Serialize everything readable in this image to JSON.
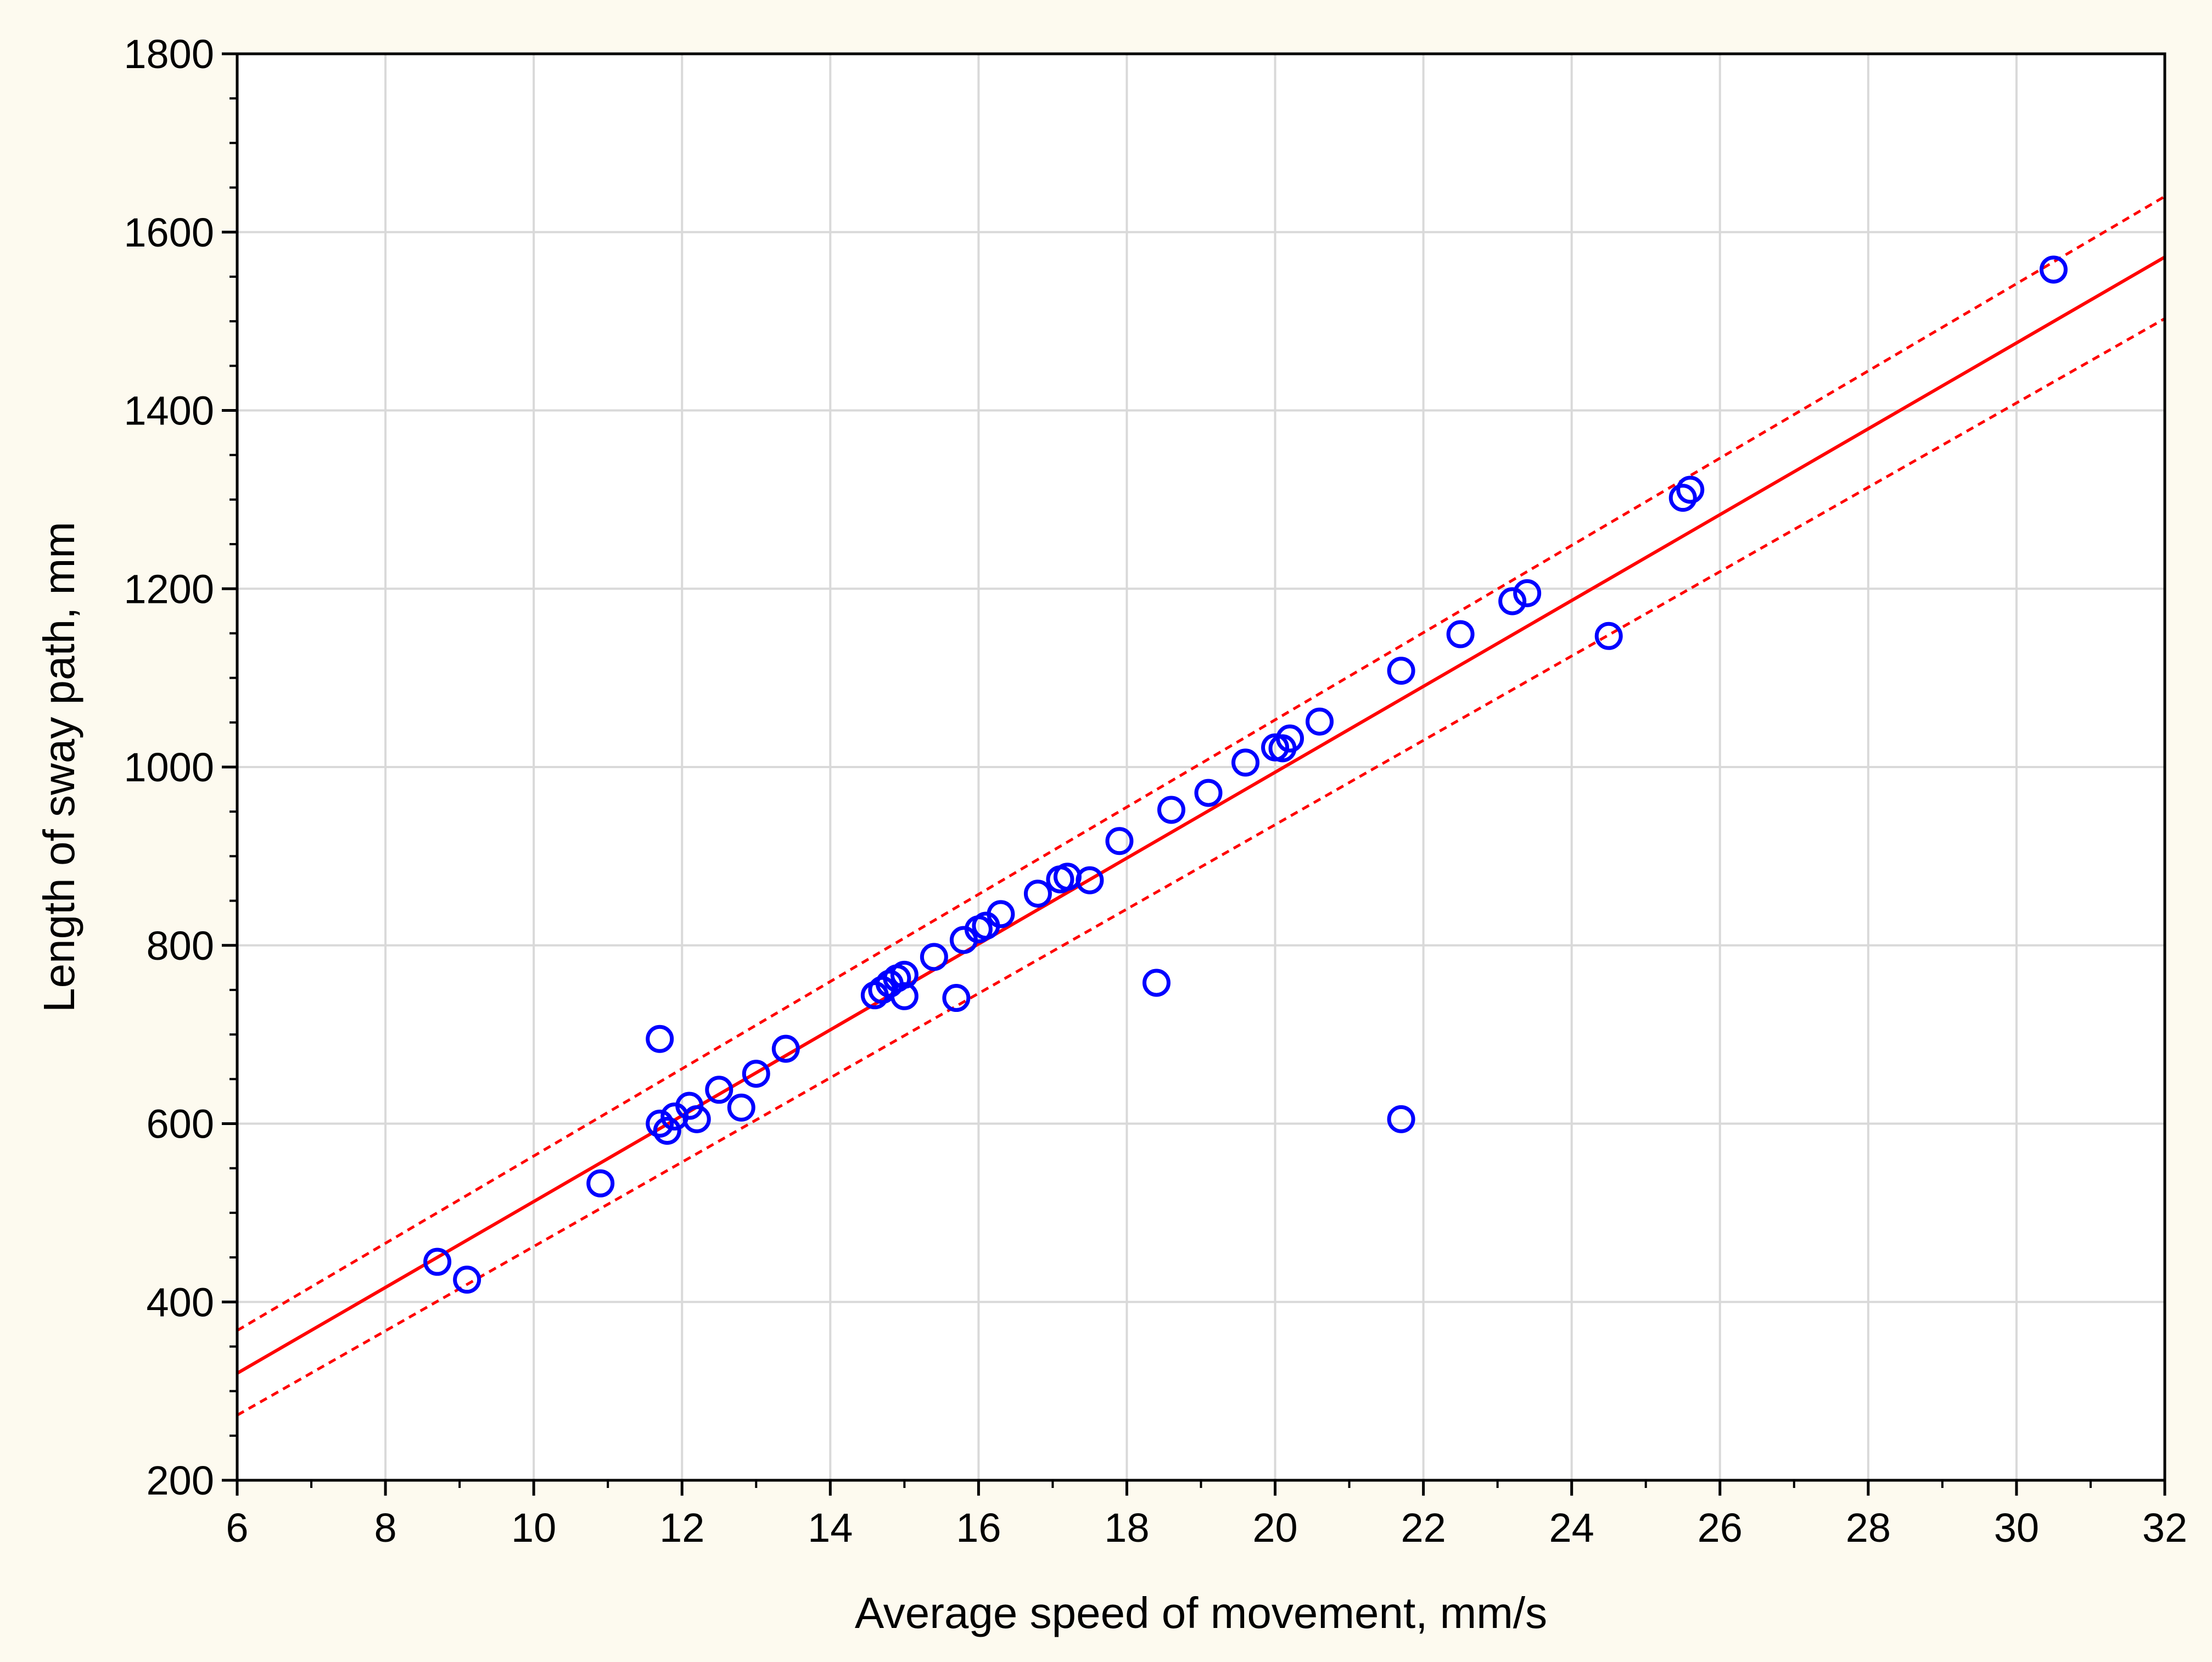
{
  "chart_data": {
    "type": "scatter",
    "title": "",
    "xlabel": "Average speed of movement, mm/s",
    "ylabel": "Length of sway path, mm",
    "xlim": [
      6,
      32
    ],
    "ylim": [
      200,
      1800
    ],
    "xticks": [
      6,
      8,
      10,
      12,
      14,
      16,
      18,
      20,
      22,
      24,
      26,
      28,
      30,
      32
    ],
    "yticks": [
      200,
      400,
      600,
      800,
      1000,
      1200,
      1400,
      1600,
      1800
    ],
    "grid": true,
    "legend": "none",
    "colors": {
      "background": "#fdfaef",
      "plot_background": "#ffffff",
      "grid": "#d9d9d9",
      "points": "#0000ff",
      "fit": "#ff0000",
      "axis": "#000000"
    },
    "points": [
      {
        "x": 8.7,
        "y": 445
      },
      {
        "x": 9.1,
        "y": 425
      },
      {
        "x": 10.9,
        "y": 533
      },
      {
        "x": 11.7,
        "y": 695
      },
      {
        "x": 11.7,
        "y": 600
      },
      {
        "x": 11.8,
        "y": 592
      },
      {
        "x": 11.9,
        "y": 608
      },
      {
        "x": 12.1,
        "y": 620
      },
      {
        "x": 12.2,
        "y": 605
      },
      {
        "x": 12.5,
        "y": 638
      },
      {
        "x": 12.8,
        "y": 618
      },
      {
        "x": 13.0,
        "y": 656
      },
      {
        "x": 13.4,
        "y": 684
      },
      {
        "x": 14.6,
        "y": 744
      },
      {
        "x": 14.7,
        "y": 750
      },
      {
        "x": 14.8,
        "y": 757
      },
      {
        "x": 14.9,
        "y": 763
      },
      {
        "x": 15.0,
        "y": 743
      },
      {
        "x": 15.0,
        "y": 767
      },
      {
        "x": 15.4,
        "y": 787
      },
      {
        "x": 15.7,
        "y": 741
      },
      {
        "x": 15.8,
        "y": 806
      },
      {
        "x": 16.0,
        "y": 818
      },
      {
        "x": 16.1,
        "y": 822
      },
      {
        "x": 16.3,
        "y": 835
      },
      {
        "x": 16.8,
        "y": 858
      },
      {
        "x": 17.1,
        "y": 874
      },
      {
        "x": 17.2,
        "y": 877
      },
      {
        "x": 17.5,
        "y": 873
      },
      {
        "x": 17.9,
        "y": 917
      },
      {
        "x": 18.4,
        "y": 758
      },
      {
        "x": 18.6,
        "y": 952
      },
      {
        "x": 19.1,
        "y": 971
      },
      {
        "x": 19.6,
        "y": 1005
      },
      {
        "x": 20.0,
        "y": 1022
      },
      {
        "x": 20.1,
        "y": 1021
      },
      {
        "x": 20.2,
        "y": 1032
      },
      {
        "x": 20.6,
        "y": 1051
      },
      {
        "x": 21.7,
        "y": 605
      },
      {
        "x": 21.7,
        "y": 1108
      },
      {
        "x": 22.5,
        "y": 1149
      },
      {
        "x": 23.2,
        "y": 1186
      },
      {
        "x": 23.4,
        "y": 1195
      },
      {
        "x": 24.5,
        "y": 1147
      },
      {
        "x": 25.5,
        "y": 1302
      },
      {
        "x": 25.6,
        "y": 1311
      },
      {
        "x": 30.5,
        "y": 1558
      }
    ],
    "fit_line": {
      "x": [
        6,
        32
      ],
      "y": [
        320,
        1572
      ]
    },
    "confidence_upper": {
      "x": [
        6,
        32
      ],
      "y": [
        368,
        1640
      ]
    },
    "confidence_lower": {
      "x": [
        6,
        32
      ],
      "y": [
        273,
        1503
      ]
    }
  }
}
